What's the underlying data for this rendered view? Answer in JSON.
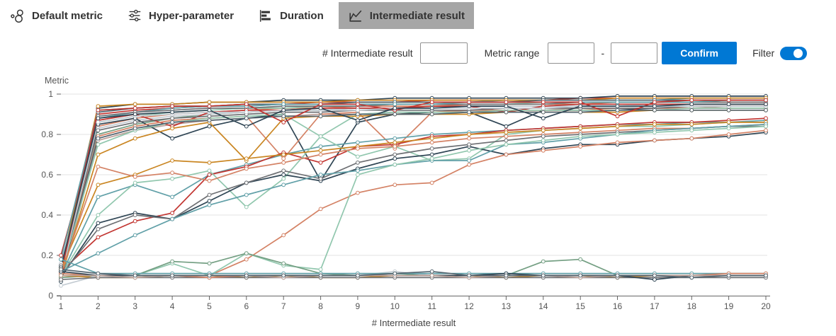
{
  "tabs": {
    "items": [
      {
        "label": "Default metric",
        "icon": "default-metric-icon",
        "selected": false
      },
      {
        "label": "Hyper-parameter",
        "icon": "hyper-parameter-icon",
        "selected": false
      },
      {
        "label": "Duration",
        "icon": "duration-icon",
        "selected": false
      },
      {
        "label": "Intermediate result",
        "icon": "intermediate-result-icon",
        "selected": true
      }
    ]
  },
  "controls": {
    "intermediate_count_label": "# Intermediate result",
    "intermediate_count_value": "",
    "metric_range_label": "Metric range",
    "range_min_value": "",
    "range_separator": "-",
    "range_max_value": "",
    "confirm_label": "Confirm",
    "filter_label": "Filter",
    "filter_on": true
  },
  "colors": {
    "accent": "#0078d4",
    "tab_selected_bg": "#a6a6a6",
    "axis_line": "#666666",
    "axis_text": "#555555",
    "grid_line": "#e3e3e3"
  },
  "chart_data": {
    "type": "line",
    "title": "",
    "ylabel": "Metric",
    "xlabel": "# Intermediate result",
    "x": [
      1,
      2,
      3,
      4,
      5,
      6,
      7,
      8,
      9,
      10,
      11,
      12,
      13,
      14,
      15,
      16,
      17,
      18,
      19,
      20
    ],
    "ylim": [
      0,
      1
    ],
    "yticks": [
      0,
      0.2,
      0.4,
      0.6,
      0.8,
      1
    ],
    "ytick_labels": [
      "0",
      "0.2",
      "0.4",
      "0.6",
      "0.8",
      "1"
    ],
    "grid": true,
    "legend": "none",
    "marker": "circle",
    "palette": [
      "#c23531",
      "#2f4554",
      "#61a0a8",
      "#d48265",
      "#91c7ae",
      "#749f83",
      "#ca8622",
      "#bda29a",
      "#6e7074",
      "#546570",
      "#c4ccd3"
    ],
    "series": [
      {
        "color": "#c23531",
        "values": [
          0.12,
          0.9,
          0.92,
          0.93,
          0.94,
          0.95,
          0.95,
          0.96,
          0.96,
          0.96,
          0.97,
          0.97,
          0.97,
          0.97,
          0.98,
          0.98,
          0.98,
          0.98,
          0.98,
          0.98
        ]
      },
      {
        "color": "#2f4554",
        "values": [
          0.09,
          0.93,
          0.95,
          0.95,
          0.96,
          0.96,
          0.97,
          0.97,
          0.97,
          0.98,
          0.98,
          0.98,
          0.98,
          0.98,
          0.98,
          0.99,
          0.99,
          0.99,
          0.99,
          0.99
        ]
      },
      {
        "color": "#61a0a8",
        "values": [
          0.15,
          0.88,
          0.91,
          0.93,
          0.94,
          0.94,
          0.95,
          0.95,
          0.96,
          0.96,
          0.96,
          0.96,
          0.97,
          0.97,
          0.97,
          0.97,
          0.97,
          0.98,
          0.98,
          0.98
        ]
      },
      {
        "color": "#d48265",
        "values": [
          0.11,
          0.84,
          0.88,
          0.9,
          0.91,
          0.92,
          0.93,
          0.93,
          0.94,
          0.94,
          0.94,
          0.95,
          0.95,
          0.95,
          0.95,
          0.96,
          0.96,
          0.96,
          0.96,
          0.96
        ]
      },
      {
        "color": "#91c7ae",
        "values": [
          0.13,
          0.86,
          0.89,
          0.91,
          0.92,
          0.93,
          0.93,
          0.94,
          0.94,
          0.95,
          0.95,
          0.95,
          0.95,
          0.96,
          0.96,
          0.96,
          0.96,
          0.96,
          0.97,
          0.97
        ]
      },
      {
        "color": "#749f83",
        "values": [
          0.1,
          0.8,
          0.85,
          0.88,
          0.9,
          0.91,
          0.92,
          0.92,
          0.93,
          0.93,
          0.94,
          0.94,
          0.94,
          0.94,
          0.95,
          0.95,
          0.95,
          0.95,
          0.95,
          0.95
        ]
      },
      {
        "color": "#ca8622",
        "values": [
          0.14,
          0.94,
          0.95,
          0.95,
          0.96,
          0.96,
          0.96,
          0.96,
          0.97,
          0.97,
          0.97,
          0.97,
          0.97,
          0.97,
          0.97,
          0.98,
          0.98,
          0.98,
          0.98,
          0.98
        ]
      },
      {
        "color": "#bda29a",
        "values": [
          0.08,
          0.77,
          0.82,
          0.85,
          0.87,
          0.88,
          0.89,
          0.9,
          0.9,
          0.91,
          0.91,
          0.92,
          0.92,
          0.92,
          0.93,
          0.93,
          0.93,
          0.93,
          0.94,
          0.94
        ]
      },
      {
        "color": "#6e7074",
        "values": [
          0.12,
          0.89,
          0.91,
          0.92,
          0.93,
          0.93,
          0.94,
          0.94,
          0.94,
          0.95,
          0.95,
          0.95,
          0.95,
          0.95,
          0.96,
          0.96,
          0.96,
          0.96,
          0.96,
          0.96
        ]
      },
      {
        "color": "#546570",
        "values": [
          0.1,
          0.91,
          0.93,
          0.94,
          0.94,
          0.95,
          0.95,
          0.95,
          0.96,
          0.96,
          0.96,
          0.96,
          0.96,
          0.97,
          0.97,
          0.97,
          0.97,
          0.97,
          0.97,
          0.97
        ]
      },
      {
        "color": "#c4ccd3",
        "values": [
          0.16,
          0.83,
          0.87,
          0.89,
          0.9,
          0.91,
          0.92,
          0.92,
          0.93,
          0.93,
          0.93,
          0.94,
          0.94,
          0.94,
          0.94,
          0.94,
          0.95,
          0.95,
          0.95,
          0.95
        ]
      },
      {
        "color": "#c23531",
        "values": [
          0.2,
          0.87,
          0.9,
          0.84,
          0.91,
          0.92,
          0.92,
          0.93,
          0.93,
          0.93,
          0.94,
          0.94,
          0.91,
          0.94,
          0.95,
          0.95,
          0.95,
          0.95,
          0.95,
          0.95
        ]
      },
      {
        "color": "#2f4554",
        "values": [
          0.07,
          0.85,
          0.88,
          0.78,
          0.84,
          0.88,
          0.9,
          0.57,
          0.86,
          0.9,
          0.91,
          0.91,
          0.84,
          0.92,
          0.92,
          0.92,
          0.93,
          0.93,
          0.93,
          0.93
        ]
      },
      {
        "color": "#61a0a8",
        "values": [
          0.18,
          0.92,
          0.93,
          0.94,
          0.94,
          0.94,
          0.95,
          0.95,
          0.95,
          0.95,
          0.95,
          0.96,
          0.96,
          0.96,
          0.96,
          0.96,
          0.96,
          0.96,
          0.97,
          0.97
        ]
      },
      {
        "color": "#d48265",
        "values": [
          0.13,
          0.79,
          0.84,
          0.87,
          0.88,
          0.89,
          0.68,
          0.9,
          0.91,
          0.73,
          0.91,
          0.92,
          0.92,
          0.92,
          0.92,
          0.93,
          0.93,
          0.93,
          0.93,
          0.93
        ]
      },
      {
        "color": "#91c7ae",
        "values": [
          0.11,
          0.75,
          0.82,
          0.86,
          0.88,
          0.89,
          0.9,
          0.79,
          0.9,
          0.91,
          0.91,
          0.91,
          0.92,
          0.92,
          0.92,
          0.92,
          0.92,
          0.93,
          0.93,
          0.93
        ]
      },
      {
        "color": "#ca8622",
        "values": [
          0.09,
          0.7,
          0.78,
          0.83,
          0.86,
          0.67,
          0.88,
          0.89,
          0.89,
          0.9,
          0.9,
          0.9,
          0.91,
          0.91,
          0.91,
          0.91,
          0.92,
          0.92,
          0.92,
          0.92
        ]
      },
      {
        "color": "#6e7074",
        "values": [
          0.15,
          0.82,
          0.86,
          0.88,
          0.89,
          0.9,
          0.91,
          0.91,
          0.92,
          0.92,
          0.92,
          0.92,
          0.93,
          0.93,
          0.93,
          0.93,
          0.93,
          0.94,
          0.94,
          0.94
        ]
      },
      {
        "color": "#546570",
        "values": [
          0.12,
          0.78,
          0.83,
          0.86,
          0.87,
          0.88,
          0.89,
          0.89,
          0.9,
          0.9,
          0.9,
          0.91,
          0.91,
          0.91,
          0.91,
          0.92,
          0.92,
          0.92,
          0.92,
          0.92
        ]
      },
      {
        "color": "#c4ccd3",
        "values": [
          0.1,
          0.86,
          0.89,
          0.9,
          0.91,
          0.91,
          0.92,
          0.92,
          0.92,
          0.93,
          0.93,
          0.93,
          0.93,
          0.93,
          0.94,
          0.94,
          0.94,
          0.94,
          0.94,
          0.94
        ]
      },
      {
        "color": "#c23531",
        "values": [
          0.11,
          0.92,
          0.93,
          0.94,
          0.94,
          0.95,
          0.86,
          0.95,
          0.95,
          0.92,
          0.96,
          0.96,
          0.96,
          0.96,
          0.96,
          0.89,
          0.96,
          0.97,
          0.97,
          0.97
        ]
      },
      {
        "color": "#2f4554",
        "values": [
          0.14,
          0.88,
          0.9,
          0.91,
          0.92,
          0.84,
          0.92,
          0.93,
          0.87,
          0.93,
          0.93,
          0.94,
          0.94,
          0.88,
          0.94,
          0.94,
          0.94,
          0.95,
          0.95,
          0.95
        ]
      },
      {
        "color": "#61a0a8",
        "values": [
          0.1,
          0.49,
          0.55,
          0.49,
          0.6,
          0.65,
          0.7,
          0.74,
          0.76,
          0.78,
          0.8,
          0.81,
          0.82,
          0.83,
          0.84,
          0.85,
          0.85,
          0.86,
          0.86,
          0.87
        ]
      },
      {
        "color": "#c23531",
        "values": [
          0.12,
          0.29,
          0.37,
          0.41,
          0.6,
          0.64,
          0.71,
          0.66,
          0.74,
          0.75,
          0.79,
          0.8,
          0.82,
          0.83,
          0.84,
          0.85,
          0.86,
          0.86,
          0.87,
          0.88
        ]
      },
      {
        "color": "#91c7ae",
        "values": [
          0.1,
          0.4,
          0.56,
          0.58,
          0.62,
          0.44,
          0.58,
          0.79,
          0.69,
          0.74,
          0.67,
          0.68,
          0.8,
          0.82,
          0.83,
          0.84,
          0.84,
          0.85,
          0.86,
          0.86
        ]
      },
      {
        "color": "#ca8622",
        "values": [
          0.13,
          0.55,
          0.6,
          0.67,
          0.66,
          0.68,
          0.7,
          0.72,
          0.74,
          0.76,
          0.78,
          0.8,
          0.81,
          0.82,
          0.83,
          0.84,
          0.85,
          0.85,
          0.86,
          0.86
        ]
      },
      {
        "color": "#2f4554",
        "values": [
          0.09,
          0.36,
          0.41,
          0.38,
          0.47,
          0.56,
          0.6,
          0.57,
          0.63,
          0.68,
          0.7,
          0.74,
          0.7,
          0.73,
          0.75,
          0.75,
          0.77,
          0.78,
          0.79,
          0.81
        ]
      },
      {
        "color": "#d48265",
        "values": [
          0.11,
          0.64,
          0.59,
          0.61,
          0.57,
          0.63,
          0.66,
          0.7,
          0.73,
          0.74,
          0.76,
          0.78,
          0.79,
          0.8,
          0.81,
          0.82,
          0.83,
          0.83,
          0.84,
          0.85
        ]
      },
      {
        "color": "#6e7074",
        "values": [
          0.1,
          0.33,
          0.4,
          0.38,
          0.5,
          0.56,
          0.62,
          0.58,
          0.66,
          0.7,
          0.73,
          0.75,
          0.77,
          0.79,
          0.8,
          0.81,
          0.82,
          0.83,
          0.84,
          0.84
        ]
      },
      {
        "color": "#61a0a8",
        "values": [
          0.12,
          0.21,
          0.3,
          0.38,
          0.45,
          0.5,
          0.55,
          0.6,
          0.62,
          0.65,
          0.67,
          0.67,
          0.75,
          0.76,
          0.78,
          0.8,
          0.82,
          0.83,
          0.84,
          0.85
        ]
      },
      {
        "color": "#d48265",
        "values": [
          0.1,
          0.1,
          0.1,
          0.1,
          0.1,
          0.18,
          0.3,
          0.43,
          0.51,
          0.55,
          0.56,
          0.65,
          0.7,
          0.72,
          0.74,
          0.76,
          0.77,
          0.78,
          0.8,
          0.82
        ]
      },
      {
        "color": "#91c7ae",
        "values": [
          0.1,
          0.1,
          0.1,
          0.16,
          0.1,
          0.21,
          0.15,
          0.13,
          0.6,
          0.65,
          0.68,
          0.72,
          0.75,
          0.77,
          0.79,
          0.8,
          0.81,
          0.82,
          0.83,
          0.84
        ]
      },
      {
        "color": "#749f83",
        "values": [
          0.1,
          0.1,
          0.1,
          0.17,
          0.16,
          0.21,
          0.16,
          0.11,
          0.1,
          0.11,
          0.1,
          0.1,
          0.1,
          0.17,
          0.18,
          0.1,
          0.1,
          0.1,
          0.1,
          0.1
        ]
      },
      {
        "color": "#749f83",
        "values": [
          0.09,
          0.1,
          0.1,
          0.1,
          0.1,
          0.1,
          0.1,
          0.1,
          0.1,
          0.1,
          0.1,
          0.1,
          0.1,
          0.1,
          0.1,
          0.1,
          0.1,
          0.1,
          0.1,
          0.1
        ]
      },
      {
        "color": "#ca8622",
        "values": [
          0.1,
          0.09,
          0.09,
          0.1,
          0.1,
          0.09,
          0.1,
          0.09,
          0.09,
          0.1,
          0.1,
          0.1,
          0.09,
          0.1,
          0.1,
          0.09,
          0.1,
          0.1,
          0.1,
          0.1
        ]
      },
      {
        "color": "#c4ccd3",
        "values": [
          0.05,
          0.1,
          0.1,
          0.1,
          0.1,
          0.1,
          0.1,
          0.1,
          0.1,
          0.12,
          0.1,
          0.1,
          0.1,
          0.1,
          0.1,
          0.1,
          0.1,
          0.1,
          0.1,
          0.1
        ]
      },
      {
        "color": "#61a0a8",
        "values": [
          0.18,
          0.11,
          0.11,
          0.11,
          0.11,
          0.11,
          0.11,
          0.11,
          0.11,
          0.11,
          0.11,
          0.11,
          0.11,
          0.11,
          0.11,
          0.11,
          0.11,
          0.11,
          0.11,
          0.11
        ]
      },
      {
        "color": "#6e7074",
        "values": [
          0.08,
          0.09,
          0.09,
          0.09,
          0.09,
          0.09,
          0.09,
          0.09,
          0.09,
          0.09,
          0.09,
          0.09,
          0.09,
          0.09,
          0.09,
          0.09,
          0.09,
          0.09,
          0.09,
          0.09
        ]
      },
      {
        "color": "#d48265",
        "values": [
          0.11,
          0.1,
          0.1,
          0.1,
          0.09,
          0.1,
          0.1,
          0.1,
          0.1,
          0.1,
          0.1,
          0.1,
          0.1,
          0.1,
          0.1,
          0.1,
          0.1,
          0.1,
          0.11,
          0.11
        ]
      },
      {
        "color": "#2f4554",
        "values": [
          0.12,
          0.1,
          0.1,
          0.1,
          0.1,
          0.1,
          0.1,
          0.1,
          0.1,
          0.1,
          0.1,
          0.1,
          0.11,
          0.1,
          0.1,
          0.1,
          0.08,
          0.1,
          0.1,
          0.1
        ]
      },
      {
        "color": "#bda29a",
        "values": [
          0.1,
          0.1,
          0.09,
          0.1,
          0.1,
          0.1,
          0.09,
          0.1,
          0.1,
          0.1,
          0.1,
          0.09,
          0.1,
          0.1,
          0.09,
          0.1,
          0.1,
          0.1,
          0.1,
          0.1
        ]
      },
      {
        "color": "#546570",
        "values": [
          0.13,
          0.11,
          0.1,
          0.1,
          0.1,
          0.1,
          0.1,
          0.1,
          0.1,
          0.11,
          0.12,
          0.1,
          0.1,
          0.1,
          0.1,
          0.1,
          0.1,
          0.09,
          0.1,
          0.1
        ]
      }
    ]
  }
}
